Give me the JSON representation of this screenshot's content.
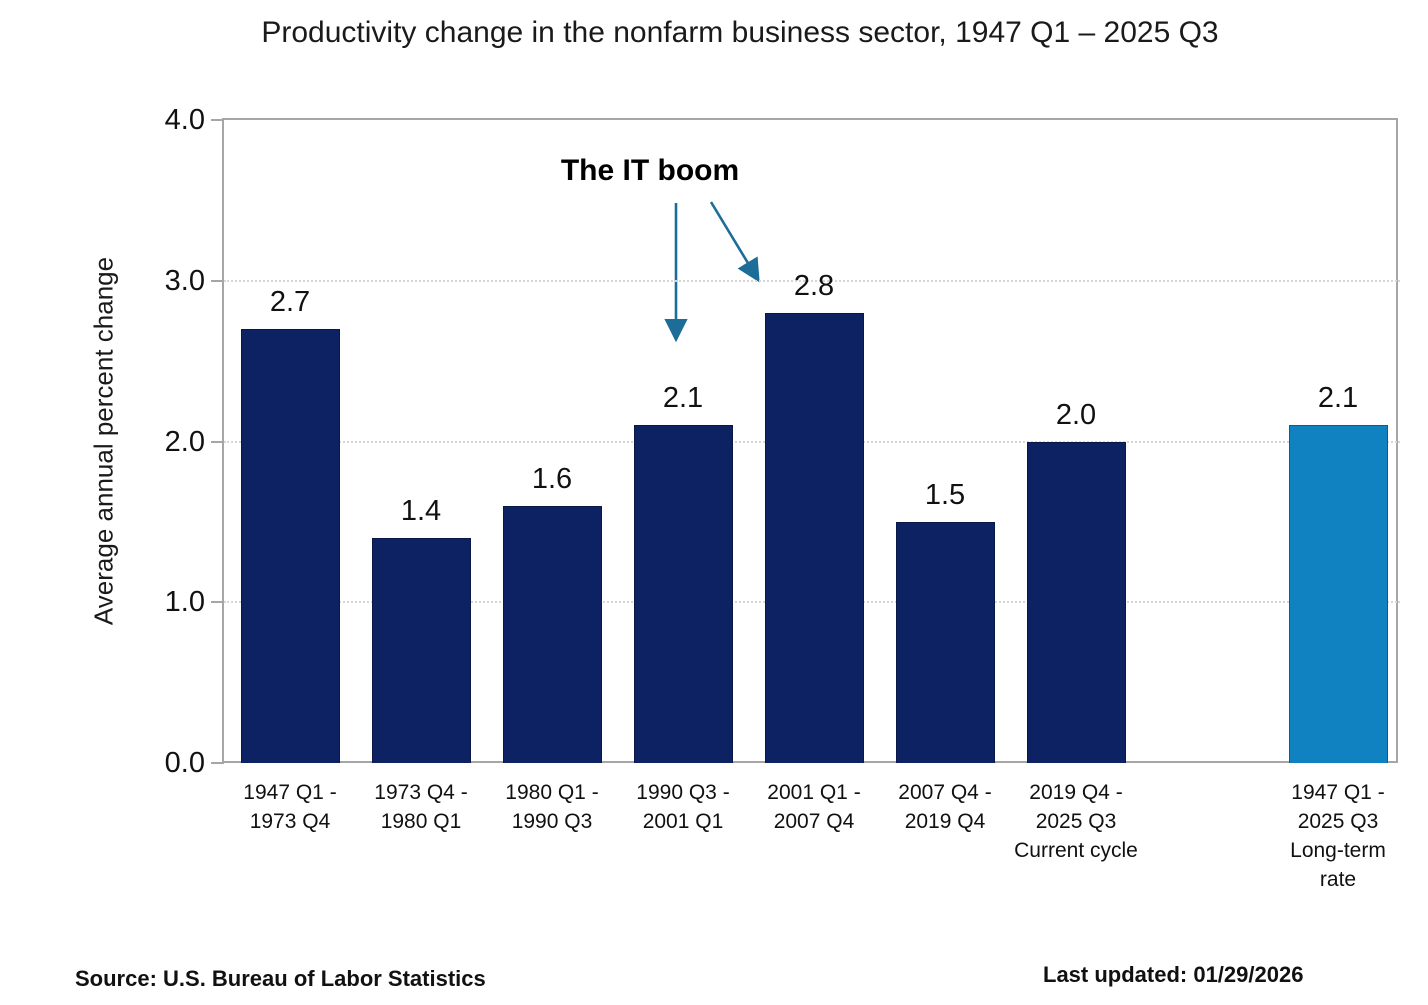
{
  "title": "Productivity change in the nonfarm business sector, 1947 Q1 – 2025 Q3",
  "annotation": {
    "label": "The IT boom"
  },
  "footer": {
    "source": "Source: U.S. Bureau of Labor Statistics",
    "last_updated": "Last updated: 01/29/2026"
  },
  "colors": {
    "bar_primary": "#0d2263",
    "bar_highlight": "#1081c1",
    "arrow": "#1d6d99",
    "axis": "#a6a6a6",
    "gridline": "#d6d6d6",
    "text": "#111111"
  },
  "chart_data": {
    "type": "bar",
    "title": "Productivity change in the nonfarm business sector, 1947 Q1 – 2025 Q3",
    "xlabel": "",
    "ylabel": "Average annual percent change",
    "ylim": [
      0,
      4
    ],
    "yticks": [
      0,
      1,
      2,
      3,
      4
    ],
    "ytick_labels": [
      "0.0",
      "1.0",
      "2.0",
      "3.0",
      "4.0"
    ],
    "grid": "horizontal-dotted",
    "legend": "none",
    "categories": [
      "1947 Q1 - 1973 Q4",
      "1973 Q4 - 1980 Q1",
      "1980 Q1 - 1990 Q3",
      "1990 Q3 - 2001 Q1",
      "2001 Q1 - 2007 Q4",
      "2007 Q4 - 2019 Q4",
      "2019 Q4 - 2025 Q3 Current cycle",
      "1947 Q1 - 2025 Q3 Long-term rate"
    ],
    "values": [
      2.7,
      1.4,
      1.6,
      2.1,
      2.8,
      1.5,
      2.0,
      2.1
    ],
    "annotation": {
      "text": "The IT boom",
      "points_to": [
        "1990 Q3 - 2001 Q1",
        "2001 Q1 - 2007 Q4"
      ]
    },
    "bars": [
      {
        "slot": 0,
        "value": 2.7,
        "value_label": "2.7",
        "color_key": "bar_primary",
        "label_lines": [
          "1947 Q1 -",
          "1973 Q4"
        ]
      },
      {
        "slot": 1,
        "value": 1.4,
        "value_label": "1.4",
        "color_key": "bar_primary",
        "label_lines": [
          "1973 Q4 -",
          "1980 Q1"
        ]
      },
      {
        "slot": 2,
        "value": 1.6,
        "value_label": "1.6",
        "color_key": "bar_primary",
        "label_lines": [
          "1980 Q1 -",
          "1990 Q3"
        ]
      },
      {
        "slot": 3,
        "value": 2.1,
        "value_label": "2.1",
        "color_key": "bar_primary",
        "label_lines": [
          "1990 Q3 -",
          "2001 Q1"
        ]
      },
      {
        "slot": 4,
        "value": 2.8,
        "value_label": "2.8",
        "color_key": "bar_primary",
        "label_lines": [
          "2001 Q1 -",
          "2007 Q4"
        ]
      },
      {
        "slot": 5,
        "value": 1.5,
        "value_label": "1.5",
        "color_key": "bar_primary",
        "label_lines": [
          "2007 Q4 -",
          "2019 Q4"
        ]
      },
      {
        "slot": 6,
        "value": 2.0,
        "value_label": "2.0",
        "color_key": "bar_primary",
        "label_lines": [
          "2019 Q4 -",
          "2025 Q3",
          "Current cycle"
        ]
      },
      {
        "slot": 8,
        "value": 2.1,
        "value_label": "2.1",
        "color_key": "bar_highlight",
        "label_lines": [
          "1947 Q1 -",
          "2025 Q3",
          "Long-term",
          "rate"
        ]
      }
    ]
  }
}
